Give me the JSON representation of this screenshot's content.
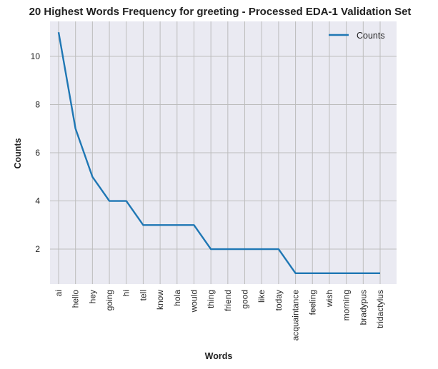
{
  "chart_data": {
    "type": "line",
    "title": "20 Highest Words Frequency for greeting - Processed EDA-1 Validation Set",
    "xlabel": "Words",
    "ylabel": "Counts",
    "categories": [
      "ai",
      "hello",
      "hey",
      "going",
      "hi",
      "tell",
      "know",
      "hola",
      "would",
      "thing",
      "friend",
      "good",
      "like",
      "today",
      "acquaintance",
      "feeling",
      "wish",
      "morning",
      "bradypus",
      "tridactylus"
    ],
    "series": [
      {
        "name": "Counts",
        "values": [
          11,
          7,
          5,
          4,
          4,
          3,
          3,
          3,
          3,
          2,
          2,
          2,
          2,
          2,
          1,
          1,
          1,
          1,
          1,
          1
        ]
      }
    ],
    "ylim": [
      0.55,
      11.45
    ],
    "yticks": [
      2,
      4,
      6,
      8,
      10
    ],
    "grid": true,
    "legend": "top-right",
    "colors": {
      "line": "#1f77b4",
      "background": "#eaeaf2",
      "grid": "#bdbdbd"
    }
  }
}
